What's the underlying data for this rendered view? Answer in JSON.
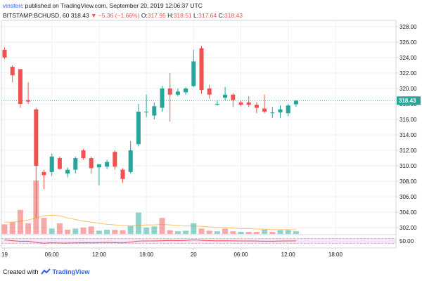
{
  "header": {
    "author": "vinsterc",
    "published_text": " published on TradingView.com, September 20, 2019 12:06:37 UTC",
    "symbol": "BITSTAMP:BCHUSD, 60",
    "last": "318.43",
    "change": "▼ −5.36 (−1.66%)",
    "open_label": "O:",
    "open_value": "317.95",
    "high_label": "H:",
    "high_value": "318.51",
    "low_label": "L:",
    "low_value": "317.64",
    "close_label": "C:",
    "close_value": "318.43"
  },
  "footer": {
    "created_with": "Created with",
    "brand": "TradingView"
  },
  "colors": {
    "up": "#26a69a",
    "down": "#ef5350",
    "grid": "#eef0f3",
    "axis": "#d1d4dc",
    "text": "#131722",
    "rsi": "#ef5350",
    "rsi_band": "#f3e5f5"
  },
  "chart_data": {
    "type": "candlestick",
    "ylim": [
      301.2,
      328.8
    ],
    "price_ticks": [
      "328.00",
      "326.00",
      "324.00",
      "322.00",
      "320.00",
      "318.00",
      "316.00",
      "314.00",
      "312.00",
      "310.00",
      "308.00",
      "306.00",
      "304.00",
      "302.00"
    ],
    "last_price_label": "318.43",
    "last_price": 318.43,
    "x_labels": [
      "19",
      "06:00",
      "12:00",
      "18:00",
      "20",
      "06:00",
      "12:00",
      "18:00"
    ],
    "x_label_hours": [
      0,
      6,
      12,
      18,
      24,
      30,
      36,
      42
    ],
    "candles": [
      {
        "t": 0,
        "o": 325.0,
        "h": 325.3,
        "l": 323.8,
        "c": 324.0
      },
      {
        "t": 1,
        "o": 322.8,
        "h": 323.0,
        "l": 320.8,
        "c": 321.7
      },
      {
        "t": 2,
        "o": 322.5,
        "h": 322.5,
        "l": 317.5,
        "c": 318.0
      },
      {
        "t": 3,
        "o": 318.5,
        "h": 320.8,
        "l": 318.0,
        "c": 318.3
      },
      {
        "t": 4,
        "o": 317.3,
        "h": 317.5,
        "l": 303.3,
        "c": 310.0
      },
      {
        "t": 5,
        "o": 309.2,
        "h": 309.5,
        "l": 307.0,
        "c": 308.8
      },
      {
        "t": 6,
        "o": 309.2,
        "h": 311.6,
        "l": 308.7,
        "c": 311.2
      },
      {
        "t": 7,
        "o": 311.0,
        "h": 311.2,
        "l": 309.5,
        "c": 309.6
      },
      {
        "t": 8,
        "o": 309.0,
        "h": 309.8,
        "l": 308.5,
        "c": 309.5
      },
      {
        "t": 9,
        "o": 309.5,
        "h": 311.2,
        "l": 309.0,
        "c": 311.0
      },
      {
        "t": 10,
        "o": 312.0,
        "h": 312.2,
        "l": 310.8,
        "c": 311.0
      },
      {
        "t": 11,
        "o": 311.0,
        "h": 311.2,
        "l": 309.0,
        "c": 309.7
      },
      {
        "t": 12,
        "o": 309.8,
        "h": 310.2,
        "l": 307.5,
        "c": 310.2
      },
      {
        "t": 13,
        "o": 309.9,
        "h": 310.8,
        "l": 309.6,
        "c": 310.5
      },
      {
        "t": 14,
        "o": 311.8,
        "h": 312.0,
        "l": 309.5,
        "c": 309.9
      },
      {
        "t": 15,
        "o": 309.5,
        "h": 309.7,
        "l": 307.8,
        "c": 308.3
      },
      {
        "t": 16,
        "o": 309.2,
        "h": 313.2,
        "l": 309.0,
        "c": 312.0
      },
      {
        "t": 17,
        "o": 312.8,
        "h": 318.0,
        "l": 312.5,
        "c": 317.0
      },
      {
        "t": 18,
        "o": 317.0,
        "h": 319.2,
        "l": 316.3,
        "c": 317.0
      },
      {
        "t": 19,
        "o": 316.5,
        "h": 318.2,
        "l": 316.0,
        "c": 317.7
      },
      {
        "t": 20,
        "o": 317.5,
        "h": 320.3,
        "l": 317.0,
        "c": 320.0
      },
      {
        "t": 21,
        "o": 320.0,
        "h": 322.0,
        "l": 315.7,
        "c": 319.2
      },
      {
        "t": 22,
        "o": 319.2,
        "h": 320.0,
        "l": 319.0,
        "c": 319.6
      },
      {
        "t": 23,
        "o": 319.5,
        "h": 320.2,
        "l": 319.2,
        "c": 320.0
      },
      {
        "t": 24,
        "o": 320.3,
        "h": 325.0,
        "l": 320.2,
        "c": 323.5
      },
      {
        "t": 25,
        "o": 325.2,
        "h": 325.5,
        "l": 319.3,
        "c": 319.8
      },
      {
        "t": 26,
        "o": 320.0,
        "h": 320.5,
        "l": 318.7,
        "c": 319.2
      },
      {
        "t": 27,
        "o": 318.0,
        "h": 318.5,
        "l": 317.8,
        "c": 318.0
      },
      {
        "t": 28,
        "o": 318.8,
        "h": 320.2,
        "l": 318.5,
        "c": 319.2
      },
      {
        "t": 29,
        "o": 319.2,
        "h": 319.4,
        "l": 317.6,
        "c": 318.5
      },
      {
        "t": 30,
        "o": 318.2,
        "h": 318.4,
        "l": 317.7,
        "c": 317.9
      },
      {
        "t": 31,
        "o": 318.2,
        "h": 319.0,
        "l": 317.6,
        "c": 317.9
      },
      {
        "t": 32,
        "o": 317.9,
        "h": 318.2,
        "l": 316.8,
        "c": 317.5
      },
      {
        "t": 33,
        "o": 317.4,
        "h": 319.2,
        "l": 316.8,
        "c": 317.0
      },
      {
        "t": 34,
        "o": 316.8,
        "h": 317.6,
        "l": 316.2,
        "c": 316.9
      },
      {
        "t": 35,
        "o": 316.9,
        "h": 317.8,
        "l": 316.2,
        "c": 317.3
      },
      {
        "t": 36,
        "o": 316.8,
        "h": 318.0,
        "l": 316.4,
        "c": 317.8
      },
      {
        "t": 37,
        "o": 317.95,
        "h": 318.51,
        "l": 317.64,
        "c": 318.43
      }
    ],
    "volumes": [
      {
        "t": 0,
        "v": 0.18,
        "up": false
      },
      {
        "t": 1,
        "v": 0.22,
        "up": false
      },
      {
        "t": 2,
        "v": 0.45,
        "up": false
      },
      {
        "t": 3,
        "v": 0.2,
        "up": false
      },
      {
        "t": 4,
        "v": 1.0,
        "up": false
      },
      {
        "t": 5,
        "v": 0.3,
        "up": false
      },
      {
        "t": 6,
        "v": 0.1,
        "up": true
      },
      {
        "t": 7,
        "v": 0.2,
        "up": false
      },
      {
        "t": 8,
        "v": 0.08,
        "up": false
      },
      {
        "t": 9,
        "v": 0.1,
        "up": true
      },
      {
        "t": 10,
        "v": 0.12,
        "up": false
      },
      {
        "t": 11,
        "v": 0.14,
        "up": false
      },
      {
        "t": 12,
        "v": 0.06,
        "up": true
      },
      {
        "t": 13,
        "v": 0.08,
        "up": true
      },
      {
        "t": 14,
        "v": 0.08,
        "up": false
      },
      {
        "t": 15,
        "v": 0.07,
        "up": false
      },
      {
        "t": 16,
        "v": 0.15,
        "up": true
      },
      {
        "t": 17,
        "v": 0.4,
        "up": true
      },
      {
        "t": 18,
        "v": 0.12,
        "up": true
      },
      {
        "t": 19,
        "v": 0.14,
        "up": true
      },
      {
        "t": 20,
        "v": 0.3,
        "up": false
      },
      {
        "t": 21,
        "v": 0.07,
        "up": false
      },
      {
        "t": 22,
        "v": 0.05,
        "up": true
      },
      {
        "t": 23,
        "v": 0.06,
        "up": true
      },
      {
        "t": 24,
        "v": 0.2,
        "up": true
      },
      {
        "t": 25,
        "v": 0.1,
        "up": false
      },
      {
        "t": 26,
        "v": 0.06,
        "up": false
      },
      {
        "t": 27,
        "v": 0.05,
        "up": true
      },
      {
        "t": 28,
        "v": 0.1,
        "up": false
      },
      {
        "t": 29,
        "v": 0.05,
        "up": false
      },
      {
        "t": 30,
        "v": 0.04,
        "up": true
      },
      {
        "t": 31,
        "v": 0.04,
        "up": false
      },
      {
        "t": 32,
        "v": 0.04,
        "up": false
      },
      {
        "t": 33,
        "v": 0.08,
        "up": true
      },
      {
        "t": 34,
        "v": 0.04,
        "up": false
      },
      {
        "t": 35,
        "v": 0.07,
        "up": true
      },
      {
        "t": 36,
        "v": 0.07,
        "up": true
      },
      {
        "t": 37,
        "v": 0.05,
        "up": true
      }
    ],
    "volume_ma": [
      0.22,
      0.22,
      0.24,
      0.26,
      0.3,
      0.34,
      0.35,
      0.34,
      0.3,
      0.27,
      0.24,
      0.22,
      0.2,
      0.18,
      0.17,
      0.16,
      0.15,
      0.16,
      0.17,
      0.17,
      0.18,
      0.17,
      0.16,
      0.15,
      0.15,
      0.14,
      0.13,
      0.12,
      0.12,
      0.11,
      0.1,
      0.1,
      0.09,
      0.09,
      0.08,
      0.08,
      0.08,
      0.08
    ],
    "rsi_label": "50.00",
    "rsi_band": [
      30,
      70
    ],
    "rsi_range": [
      0,
      100
    ],
    "rsi": [
      58,
      52,
      47,
      48,
      38,
      32,
      36,
      33,
      33,
      35,
      36,
      35,
      37,
      38,
      37,
      35,
      41,
      49,
      50,
      50,
      52,
      54,
      53,
      54,
      58,
      55,
      53,
      51,
      52,
      51,
      50,
      50,
      49,
      48,
      48,
      49,
      50,
      51
    ]
  }
}
